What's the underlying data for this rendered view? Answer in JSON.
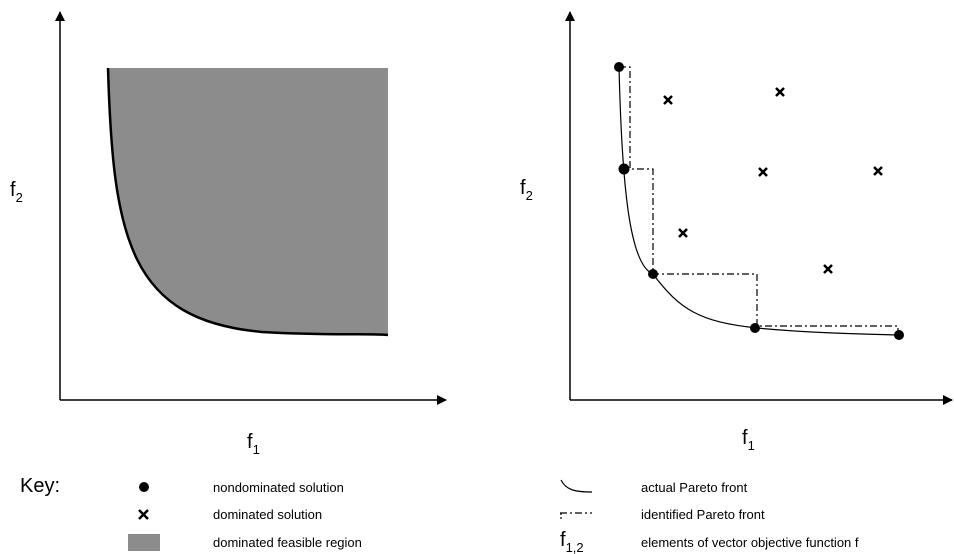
{
  "left_panel": {
    "x_axis": {
      "main": "f",
      "sub": "1"
    },
    "y_axis": {
      "main": "f",
      "sub": "2"
    }
  },
  "right_panel": {
    "x_axis": {
      "main": "f",
      "sub": "1"
    },
    "y_axis": {
      "main": "f",
      "sub": "2"
    }
  },
  "key": {
    "title": "Key:",
    "nondominated": "nondominated solution",
    "dominated": "dominated solution",
    "region": "dominated feasible region",
    "actual_front": "actual Pareto front",
    "identified_front": "identified Pareto front",
    "elements_symbol": {
      "main": "f",
      "sub": "1,2"
    },
    "elements": "elements of vector objective function f"
  },
  "colors": {
    "region_fill": "#8c8c8c",
    "ink": "#000000"
  }
}
